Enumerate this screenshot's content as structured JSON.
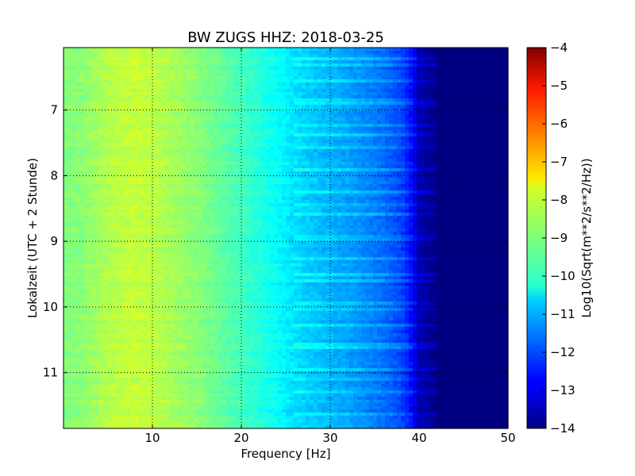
{
  "chart_data": {
    "type": "heatmap",
    "title": "BW ZUGS HHZ: 2018-03-25",
    "xlabel": "Frequency [Hz]",
    "ylabel": "Lokalzeit (UTC + 2 Stunde)",
    "xlim": [
      0,
      50
    ],
    "ylim": [
      6.05,
      11.85
    ],
    "y_inverted": true,
    "x_ticks": [
      {
        "value": 10,
        "label": "10"
      },
      {
        "value": 20,
        "label": "20"
      },
      {
        "value": 30,
        "label": "30"
      },
      {
        "value": 40,
        "label": "40"
      },
      {
        "value": 50,
        "label": "50"
      }
    ],
    "y_ticks": [
      {
        "value": 7,
        "label": "7"
      },
      {
        "value": 8,
        "label": "8"
      },
      {
        "value": 9,
        "label": "9"
      },
      {
        "value": 10,
        "label": "10"
      },
      {
        "value": 11,
        "label": "11"
      }
    ],
    "grid": true,
    "colormap": "jet",
    "colorbar": {
      "label": "Log10(Sqrt(m**2/s**2/Hz))",
      "range": [
        -14,
        -4
      ],
      "ticks": [
        {
          "value": -4,
          "label": "−4"
        },
        {
          "value": -5,
          "label": "−5"
        },
        {
          "value": -6,
          "label": "−6"
        },
        {
          "value": -7,
          "label": "−7"
        },
        {
          "value": -8,
          "label": "−8"
        },
        {
          "value": -9,
          "label": "−9"
        },
        {
          "value": -10,
          "label": "−10"
        },
        {
          "value": -11,
          "label": "−11"
        },
        {
          "value": -12,
          "label": "−12"
        },
        {
          "value": -13,
          "label": "−13"
        },
        {
          "value": -14,
          "label": "−14"
        }
      ]
    },
    "spectrum_profile": {
      "frequency_hz": [
        0,
        2,
        5,
        8,
        10,
        12,
        15,
        20,
        22,
        24,
        25,
        27,
        30,
        33,
        36,
        38,
        39,
        40,
        42,
        45,
        50
      ],
      "log_amplitude": [
        -9.0,
        -8.9,
        -8.5,
        -8.3,
        -8.4,
        -8.6,
        -8.9,
        -9.6,
        -9.9,
        -10.2,
        -10.4,
        -10.7,
        -11.0,
        -11.3,
        -11.7,
        -12.1,
        -12.6,
        -13.5,
        -14.0,
        -14.0,
        -14.0
      ]
    }
  }
}
